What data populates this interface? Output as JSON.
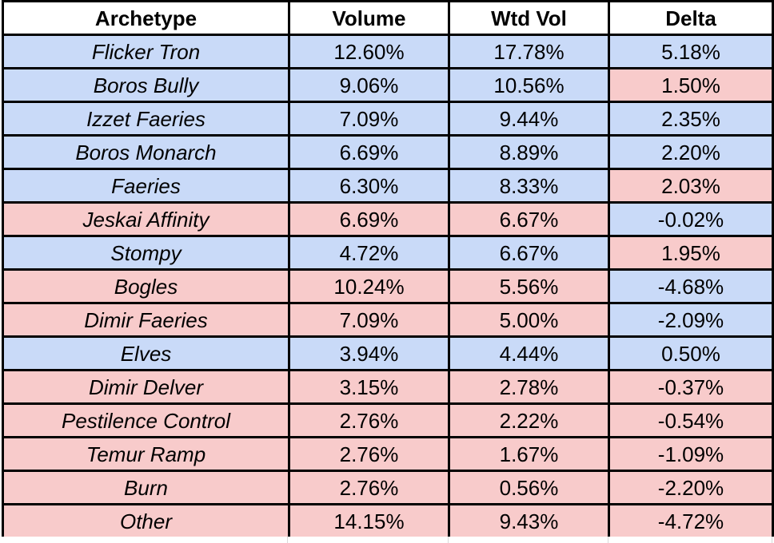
{
  "colors": {
    "blue": "#c9daf8",
    "pink": "#f8cbcb",
    "header_bg": "#ffffff",
    "border": "#000000",
    "gridline": "#d9d9d9",
    "text": "#000000"
  },
  "table": {
    "columns": [
      "Archetype",
      "Volume",
      "Wtd Vol",
      "Delta"
    ],
    "rows": [
      {
        "archetype": "Flicker Tron",
        "volume": "12.60%",
        "wtd_vol": "17.78%",
        "delta": "5.18%",
        "row_color": "blue",
        "delta_color": "blue"
      },
      {
        "archetype": "Boros Bully",
        "volume": "9.06%",
        "wtd_vol": "10.56%",
        "delta": "1.50%",
        "row_color": "blue",
        "delta_color": "pink"
      },
      {
        "archetype": "Izzet Faeries",
        "volume": "7.09%",
        "wtd_vol": "9.44%",
        "delta": "2.35%",
        "row_color": "blue",
        "delta_color": "blue"
      },
      {
        "archetype": "Boros Monarch",
        "volume": "6.69%",
        "wtd_vol": "8.89%",
        "delta": "2.20%",
        "row_color": "blue",
        "delta_color": "blue"
      },
      {
        "archetype": "Faeries",
        "volume": "6.30%",
        "wtd_vol": "8.33%",
        "delta": "2.03%",
        "row_color": "blue",
        "delta_color": "pink"
      },
      {
        "archetype": "Jeskai Affinity",
        "volume": "6.69%",
        "wtd_vol": "6.67%",
        "delta": "-0.02%",
        "row_color": "pink",
        "delta_color": "blue"
      },
      {
        "archetype": "Stompy",
        "volume": "4.72%",
        "wtd_vol": "6.67%",
        "delta": "1.95%",
        "row_color": "blue",
        "delta_color": "pink"
      },
      {
        "archetype": "Bogles",
        "volume": "10.24%",
        "wtd_vol": "5.56%",
        "delta": "-4.68%",
        "row_color": "pink",
        "delta_color": "blue"
      },
      {
        "archetype": "Dimir Faeries",
        "volume": "7.09%",
        "wtd_vol": "5.00%",
        "delta": "-2.09%",
        "row_color": "pink",
        "delta_color": "blue"
      },
      {
        "archetype": "Elves",
        "volume": "3.94%",
        "wtd_vol": "4.44%",
        "delta": "0.50%",
        "row_color": "blue",
        "delta_color": "blue"
      },
      {
        "archetype": "Dimir Delver",
        "volume": "3.15%",
        "wtd_vol": "2.78%",
        "delta": "-0.37%",
        "row_color": "pink",
        "delta_color": "pink"
      },
      {
        "archetype": "Pestilence Control",
        "volume": "2.76%",
        "wtd_vol": "2.22%",
        "delta": "-0.54%",
        "row_color": "pink",
        "delta_color": "pink"
      },
      {
        "archetype": "Temur Ramp",
        "volume": "2.76%",
        "wtd_vol": "1.67%",
        "delta": "-1.09%",
        "row_color": "pink",
        "delta_color": "pink"
      },
      {
        "archetype": "Burn",
        "volume": "2.76%",
        "wtd_vol": "0.56%",
        "delta": "-2.20%",
        "row_color": "pink",
        "delta_color": "pink"
      },
      {
        "archetype": "Other",
        "volume": "14.15%",
        "wtd_vol": "9.43%",
        "delta": "-4.72%",
        "row_color": "pink",
        "delta_color": "pink"
      }
    ]
  },
  "chart_data": {
    "type": "table",
    "columns": [
      "Archetype",
      "Volume",
      "Wtd Vol",
      "Delta"
    ],
    "rows": [
      {
        "archetype": "Flicker Tron",
        "volume_pct": 12.6,
        "wtd_vol_pct": 17.78,
        "delta_pct": 5.18
      },
      {
        "archetype": "Boros Bully",
        "volume_pct": 9.06,
        "wtd_vol_pct": 10.56,
        "delta_pct": 1.5
      },
      {
        "archetype": "Izzet Faeries",
        "volume_pct": 7.09,
        "wtd_vol_pct": 9.44,
        "delta_pct": 2.35
      },
      {
        "archetype": "Boros Monarch",
        "volume_pct": 6.69,
        "wtd_vol_pct": 8.89,
        "delta_pct": 2.2
      },
      {
        "archetype": "Faeries",
        "volume_pct": 6.3,
        "wtd_vol_pct": 8.33,
        "delta_pct": 2.03
      },
      {
        "archetype": "Jeskai Affinity",
        "volume_pct": 6.69,
        "wtd_vol_pct": 6.67,
        "delta_pct": -0.02
      },
      {
        "archetype": "Stompy",
        "volume_pct": 4.72,
        "wtd_vol_pct": 6.67,
        "delta_pct": 1.95
      },
      {
        "archetype": "Bogles",
        "volume_pct": 10.24,
        "wtd_vol_pct": 5.56,
        "delta_pct": -4.68
      },
      {
        "archetype": "Dimir Faeries",
        "volume_pct": 7.09,
        "wtd_vol_pct": 5.0,
        "delta_pct": -2.09
      },
      {
        "archetype": "Elves",
        "volume_pct": 3.94,
        "wtd_vol_pct": 4.44,
        "delta_pct": 0.5
      },
      {
        "archetype": "Dimir Delver",
        "volume_pct": 3.15,
        "wtd_vol_pct": 2.78,
        "delta_pct": -0.37
      },
      {
        "archetype": "Pestilence Control",
        "volume_pct": 2.76,
        "wtd_vol_pct": 2.22,
        "delta_pct": -0.54
      },
      {
        "archetype": "Temur Ramp",
        "volume_pct": 2.76,
        "wtd_vol_pct": 1.67,
        "delta_pct": -1.09
      },
      {
        "archetype": "Burn",
        "volume_pct": 2.76,
        "wtd_vol_pct": 0.56,
        "delta_pct": -2.2
      },
      {
        "archetype": "Other",
        "volume_pct": 14.15,
        "wtd_vol_pct": 9.43,
        "delta_pct": -4.72
      }
    ],
    "notes": "Cell fill encodes gain (blue) vs loss (pink); Delta column fill is set per-cell independently of its row fill."
  }
}
